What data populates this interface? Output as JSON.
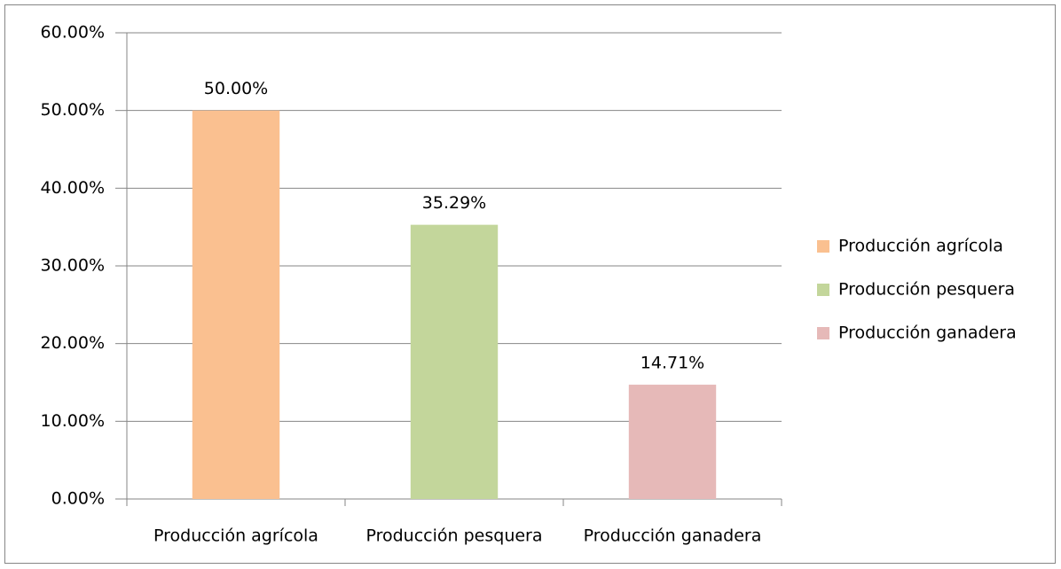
{
  "chart_data": {
    "type": "bar",
    "categories": [
      "Producción agrícola",
      "Producción pesquera",
      "Producción ganadera"
    ],
    "values": [
      50,
      35.29,
      14.71
    ],
    "value_labels": [
      "50.00%",
      "35.29%",
      "14.71%"
    ],
    "colors": [
      "#fac090",
      "#c3d69b",
      "#e6b9b8"
    ],
    "ylim": [
      0,
      60
    ],
    "yticks": [
      {
        "value": 0,
        "label": "0.00%"
      },
      {
        "value": 10,
        "label": "10.00%"
      },
      {
        "value": 20,
        "label": "20.00%"
      },
      {
        "value": 30,
        "label": "30.00%"
      },
      {
        "value": 40,
        "label": "40.00%"
      },
      {
        "value": 50,
        "label": "50.00%"
      },
      {
        "value": 60,
        "label": "60.00%"
      }
    ],
    "grid": true,
    "legend": "right"
  }
}
